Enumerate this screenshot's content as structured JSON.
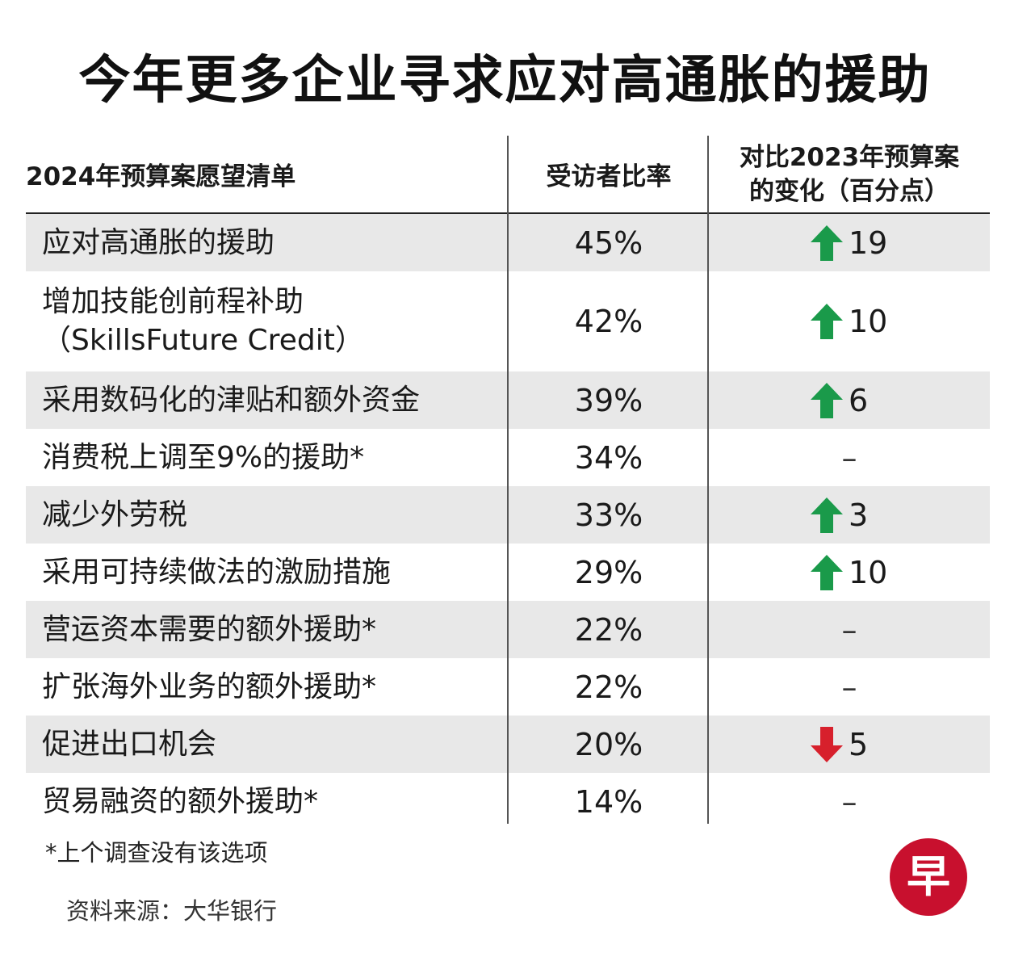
{
  "title": "今年更多企业寻求应对高通胀的援助",
  "chart_data": {
    "type": "table",
    "title": "今年更多企业寻求应对高通胀的援助",
    "columns": [
      "2024年预算案愿望清单",
      "受访者比率",
      "对比2023年预算案",
      "的变化（百分点）"
    ],
    "rows": [
      {
        "item": "应对高通胀的援助",
        "item2": "",
        "rate": "45%",
        "change": "19",
        "direction": "up"
      },
      {
        "item": "增加技能创前程补助",
        "item2": "（SkillsFuture Credit）",
        "rate": "42%",
        "change": "10",
        "direction": "up"
      },
      {
        "item": "采用数码化的津贴和额外资金",
        "item2": "",
        "rate": "39%",
        "change": "6",
        "direction": "up"
      },
      {
        "item": "消费税上调至9%的援助*",
        "item2": "",
        "rate": "34%",
        "change": "–",
        "direction": "none"
      },
      {
        "item": "减少外劳税",
        "item2": "",
        "rate": "33%",
        "change": "3",
        "direction": "up"
      },
      {
        "item": "采用可持续做法的激励措施",
        "item2": "",
        "rate": "29%",
        "change": "10",
        "direction": "up"
      },
      {
        "item": "营运资本需要的额外援助*",
        "item2": "",
        "rate": "22%",
        "change": "–",
        "direction": "none"
      },
      {
        "item": "扩张海外业务的额外援助*",
        "item2": "",
        "rate": "22%",
        "change": "–",
        "direction": "none"
      },
      {
        "item": "促进出口机会",
        "item2": "",
        "rate": "20%",
        "change": "5",
        "direction": "down"
      },
      {
        "item": "贸易融资的额外援助*",
        "item2": "",
        "rate": "14%",
        "change": "–",
        "direction": "none"
      }
    ]
  },
  "footnote": "*上个调查没有该选项",
  "source": "资料来源：大华银行",
  "logo_text": "早",
  "colors": {
    "up": "#1a9a4a",
    "down": "#d7202c",
    "shade": "#e8e8e8",
    "logo": "#c8102e"
  }
}
